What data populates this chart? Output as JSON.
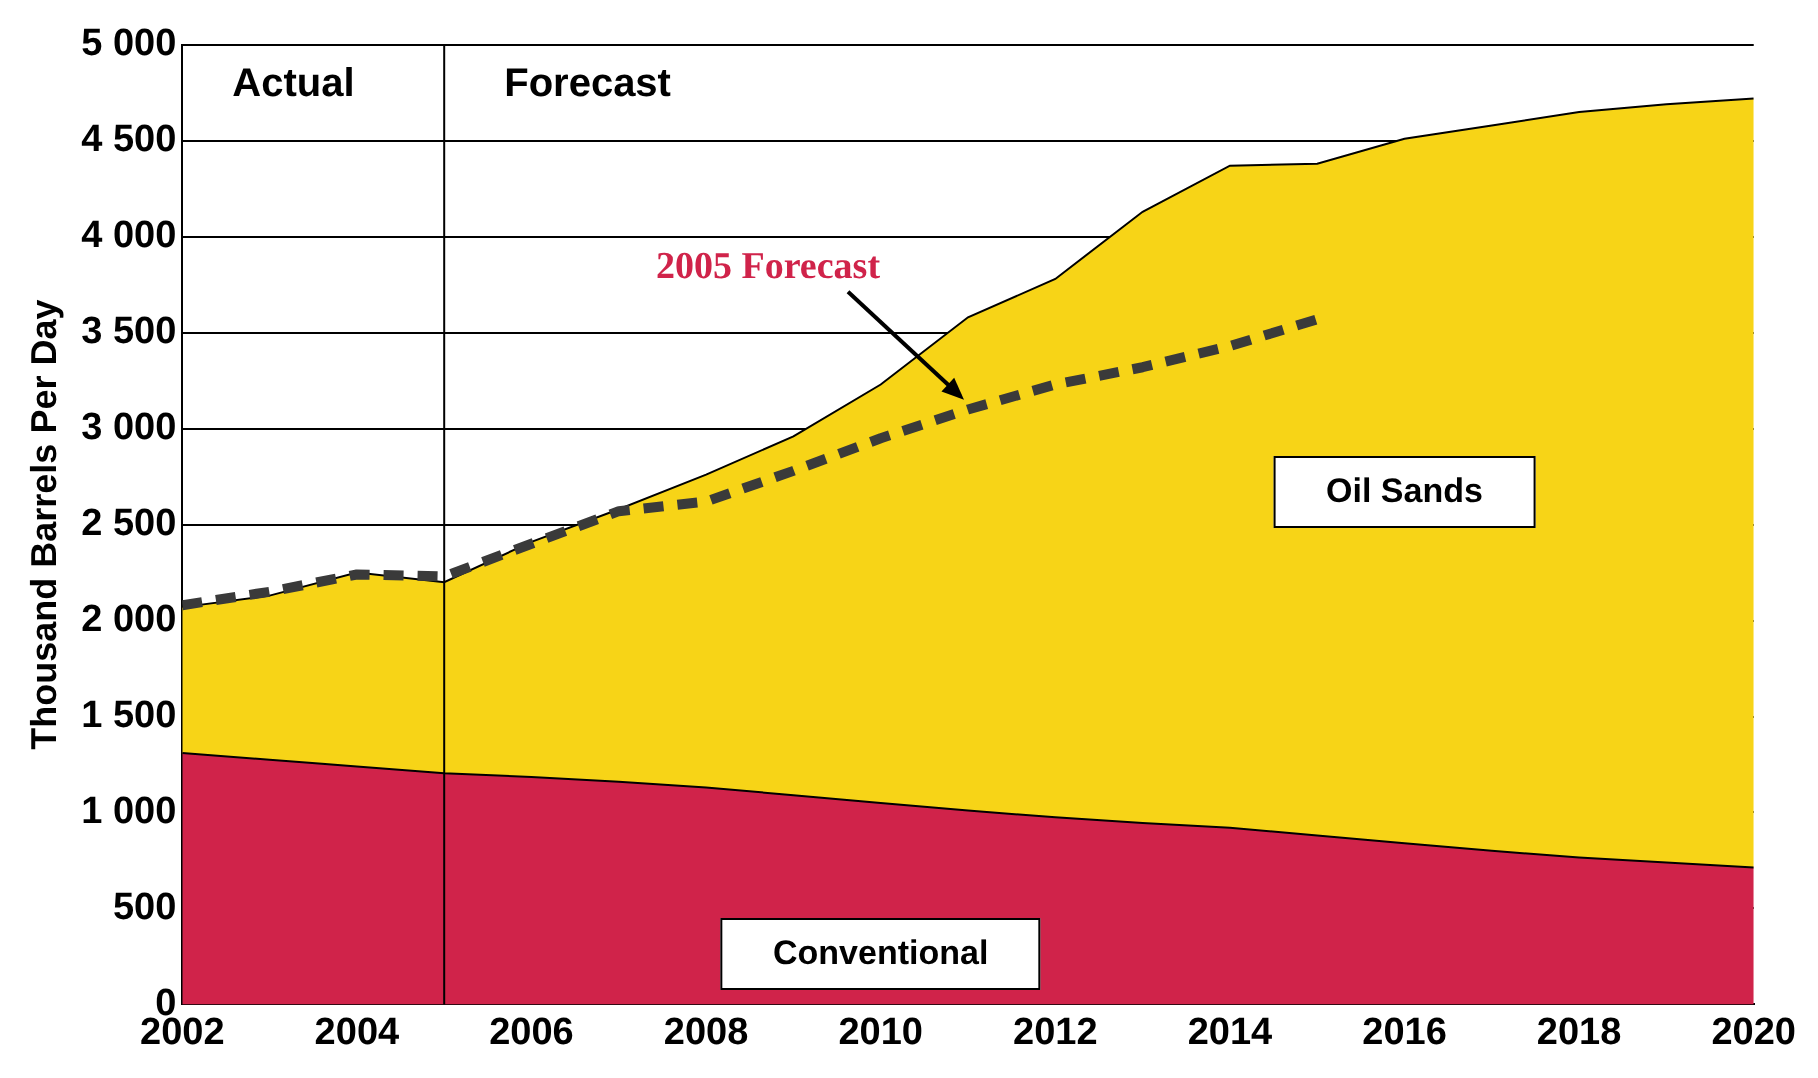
{
  "chart_data": {
    "type": "area",
    "stacked": true,
    "ylabel": "Thousand Barrels Per Day",
    "x": [
      2002,
      2003,
      2004,
      2005,
      2006,
      2007,
      2008,
      2009,
      2010,
      2011,
      2012,
      2013,
      2014,
      2015,
      2016,
      2017,
      2018,
      2019,
      2020
    ],
    "series": [
      {
        "name": "Conventional",
        "color": "#d0234a",
        "values": [
          1310,
          1275,
          1240,
          1205,
          1185,
          1160,
          1130,
          1090,
          1050,
          1010,
          975,
          945,
          920,
          880,
          840,
          800,
          765,
          740,
          713
        ]
      },
      {
        "name": "Oil Sands",
        "color": "#f7d417",
        "values": [
          760,
          855,
          1010,
          995,
          1225,
          1420,
          1630,
          1870,
          2180,
          2570,
          2805,
          3185,
          3450,
          3500,
          3670,
          3780,
          3885,
          3950,
          4007
        ]
      },
      {
        "type": "line",
        "color": "#3a3a3a",
        "line_style": "dashed",
        "x": [
          2002,
          2003,
          2004,
          2005,
          2006,
          2007,
          2008,
          2009,
          2010,
          2011,
          2012,
          2013,
          2014,
          2015
        ],
        "values": [
          2080,
          2150,
          2240,
          2230,
          2400,
          2570,
          2620,
          2780,
          2950,
          3100,
          3230,
          3320,
          3430,
          3570
        ]
      }
    ],
    "xlim": [
      2002,
      2020
    ],
    "xticks": [
      2002,
      2004,
      2006,
      2008,
      2010,
      2012,
      2014,
      2016,
      2018,
      2020
    ],
    "ylim": [
      0,
      5000
    ],
    "yticks": [
      0,
      500,
      {
        "value": 1000,
        "label": "1 000"
      },
      {
        "value": 1500,
        "label": "1 500"
      },
      {
        "value": 2000,
        "label": "2 000"
      },
      {
        "value": 2500,
        "label": "2 500"
      },
      {
        "value": 3000,
        "label": "3 000"
      },
      {
        "value": 3500,
        "label": "3 500"
      },
      {
        "value": 4000,
        "label": "4 000"
      },
      {
        "value": 4500,
        "label": "4 500"
      },
      {
        "value": 5000,
        "label": "5 000"
      }
    ],
    "grid": "y",
    "legend": false,
    "ref_lines": [
      {
        "axis": "x",
        "value": 2005,
        "color": "#000000"
      }
    ],
    "annotations": [
      "Actual",
      "Forecast",
      {
        "text": "2005 Forecast",
        "x": 2011,
        "y": 3130
      }
    ]
  }
}
